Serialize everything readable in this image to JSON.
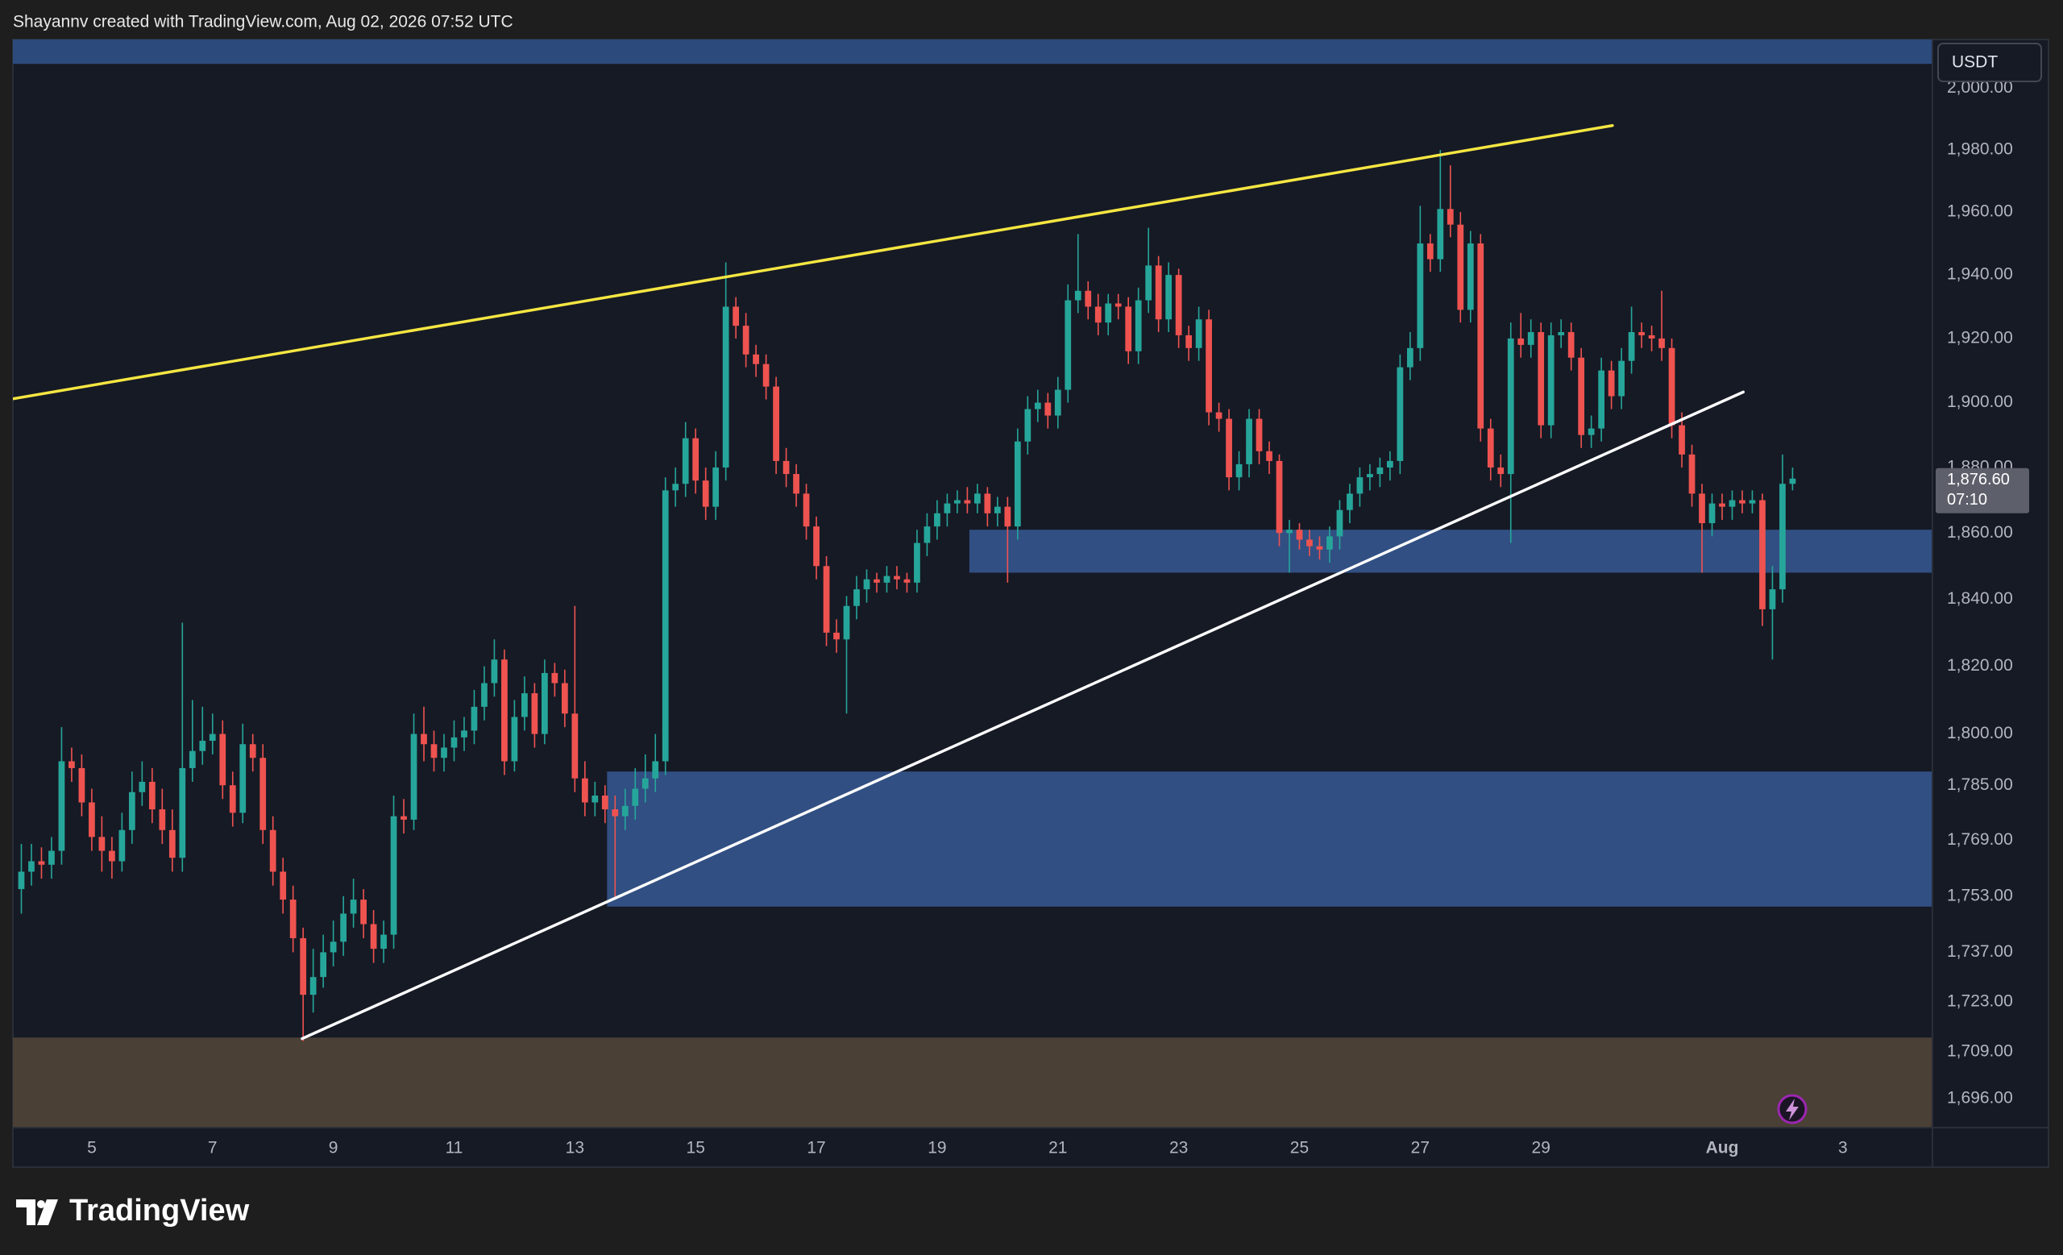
{
  "header": "Shayannv created with TradingView.com, Aug 02, 2026 07:52 UTC",
  "brand": "TradingView",
  "chart_data": {
    "type": "candlestick",
    "currency": "USDT",
    "log_scale": true,
    "grid": false,
    "up_color": "#26a69a",
    "down_color": "#ef5350",
    "xlim": [
      -0.84,
      189.9
    ],
    "xticks": [
      {
        "value": 7,
        "label": "5"
      },
      {
        "value": 19,
        "label": "7"
      },
      {
        "value": 31,
        "label": "9"
      },
      {
        "value": 43,
        "label": "11"
      },
      {
        "value": 55,
        "label": "13"
      },
      {
        "value": 67,
        "label": "15"
      },
      {
        "value": 79,
        "label": "17"
      },
      {
        "value": 91,
        "label": "19"
      },
      {
        "value": 103,
        "label": "21"
      },
      {
        "value": 115,
        "label": "23"
      },
      {
        "value": 127,
        "label": "25"
      },
      {
        "value": 139,
        "label": "27"
      },
      {
        "value": 151,
        "label": "29"
      },
      {
        "value": 169,
        "label": "Aug"
      },
      {
        "value": 181,
        "label": "3"
      }
    ],
    "ylim": [
      1688,
      2016
    ],
    "yticks": [
      {
        "value": 2000,
        "label": "2,000.00"
      },
      {
        "value": 1980,
        "label": "1,980.00"
      },
      {
        "value": 1960,
        "label": "1,960.00"
      },
      {
        "value": 1940,
        "label": "1,940.00"
      },
      {
        "value": 1920,
        "label": "1,920.00"
      },
      {
        "value": 1900,
        "label": "1,900.00"
      },
      {
        "value": 1880,
        "label": "1,880.00"
      },
      {
        "value": 1860,
        "label": "1,860.00"
      },
      {
        "value": 1840,
        "label": "1,840.00"
      },
      {
        "value": 1820,
        "label": "1,820.00"
      },
      {
        "value": 1800,
        "label": "1,800.00"
      },
      {
        "value": 1785,
        "label": "1,785.00"
      },
      {
        "value": 1769,
        "label": "1,769.00"
      },
      {
        "value": 1753,
        "label": "1,753.00"
      },
      {
        "value": 1737,
        "label": "1,737.00"
      },
      {
        "value": 1723,
        "label": "1,723.00"
      },
      {
        "value": 1709,
        "label": "1,709.00"
      },
      {
        "value": 1696,
        "label": "1,696.00"
      }
    ],
    "last_price": {
      "value": 1876.6,
      "label": "1,876.60"
    },
    "countdown": "07:10",
    "series": [
      {
        "open": [
          1755,
          1760,
          1763,
          1762,
          1766,
          1792,
          1790,
          1780,
          1770,
          1766,
          1763,
          1772,
          1783,
          1786,
          1778,
          1772,
          1764,
          1790,
          1795,
          1798,
          1800,
          1785,
          1777,
          1797,
          1793,
          1772,
          1760,
          1752,
          1741,
          1725,
          1730,
          1737,
          1740,
          1748,
          1752,
          1745,
          1738,
          1742,
          1776,
          1775,
          1800,
          1797,
          1793,
          1796,
          1799,
          1801,
          1808,
          1815,
          1822,
          1792,
          1805,
          1812,
          1800,
          1818,
          1815,
          1806,
          1787,
          1780,
          1782,
          1778,
          1776,
          1779,
          1784,
          1787,
          1792,
          1873,
          1875,
          1889,
          1876,
          1868,
          1880,
          1930,
          1924,
          1915,
          1912,
          1905,
          1882,
          1878,
          1872,
          1862,
          1850,
          1830,
          1828,
          1838,
          1843,
          1846,
          1845,
          1847,
          1846,
          1845,
          1857,
          1862,
          1866,
          1869,
          1870,
          1869,
          1872,
          1866,
          1868,
          1862,
          1888,
          1898,
          1900,
          1896,
          1904,
          1932,
          1935,
          1930,
          1925,
          1931,
          1930,
          1916,
          1932,
          1943,
          1926,
          1940,
          1921,
          1917,
          1926,
          1897,
          1895,
          1877,
          1881,
          1895,
          1885,
          1882,
          1860,
          1861,
          1858,
          1856,
          1855,
          1859,
          1867,
          1872,
          1877,
          1878,
          1880,
          1882,
          1911,
          1917,
          1950,
          1945,
          1961,
          1956,
          1929,
          1950,
          1892,
          1880,
          1878,
          1920,
          1918,
          1922,
          1893,
          1921,
          1922,
          1914,
          1890,
          1892,
          1910,
          1902,
          1913,
          1922,
          1921,
          1920,
          1917,
          1893,
          1884,
          1872,
          1863,
          1869,
          1868,
          1870,
          1869,
          1870,
          1837,
          1843,
          1875
        ],
        "high": [
          1768,
          1768,
          1767,
          1770,
          1802,
          1796,
          1794,
          1784,
          1776,
          1770,
          1777,
          1789,
          1792,
          1790,
          1784,
          1778,
          1833,
          1810,
          1808,
          1806,
          1804,
          1789,
          1803,
          1800,
          1797,
          1776,
          1764,
          1756,
          1744,
          1738,
          1742,
          1746,
          1753,
          1758,
          1755,
          1749,
          1746,
          1782,
          1781,
          1806,
          1808,
          1801,
          1800,
          1804,
          1805,
          1813,
          1820,
          1828,
          1825,
          1810,
          1817,
          1815,
          1822,
          1821,
          1819,
          1838,
          1792,
          1786,
          1785,
          1782,
          1784,
          1790,
          1794,
          1800,
          1877,
          1880,
          1894,
          1892,
          1880,
          1885,
          1944,
          1933,
          1928,
          1918,
          1915,
          1908,
          1886,
          1881,
          1875,
          1865,
          1853,
          1834,
          1841,
          1847,
          1849,
          1848,
          1850,
          1850,
          1848,
          1861,
          1866,
          1870,
          1872,
          1873,
          1874,
          1875,
          1874,
          1871,
          1871,
          1892,
          1902,
          1904,
          1903,
          1908,
          1937,
          1953,
          1938,
          1934,
          1934,
          1934,
          1933,
          1936,
          1955,
          1946,
          1944,
          1942,
          1924,
          1930,
          1929,
          1900,
          1898,
          1885,
          1898,
          1898,
          1888,
          1884,
          1864,
          1863,
          1861,
          1859,
          1862,
          1870,
          1875,
          1880,
          1881,
          1883,
          1885,
          1915,
          1922,
          1962,
          1953,
          1980,
          1975,
          1960,
          1954,
          1953,
          1895,
          1884,
          1925,
          1928,
          1926,
          1925,
          1925,
          1926,
          1925,
          1917,
          1896,
          1914,
          1913,
          1917,
          1930,
          1925,
          1924,
          1935,
          1920,
          1897,
          1887,
          1875,
          1872,
          1872,
          1873,
          1873,
          1873,
          1872,
          1850,
          1884,
          1880
        ],
        "low": [
          1748,
          1756,
          1758,
          1758,
          1762,
          1786,
          1776,
          1766,
          1760,
          1758,
          1760,
          1768,
          1779,
          1774,
          1768,
          1760,
          1760,
          1786,
          1791,
          1794,
          1781,
          1773,
          1774,
          1789,
          1768,
          1756,
          1748,
          1737,
          1712,
          1720,
          1727,
          1733,
          1736,
          1744,
          1741,
          1734,
          1734,
          1738,
          1771,
          1772,
          1792,
          1789,
          1789,
          1792,
          1795,
          1797,
          1804,
          1811,
          1788,
          1789,
          1801,
          1796,
          1797,
          1811,
          1802,
          1783,
          1776,
          1776,
          1774,
          1752,
          1772,
          1775,
          1780,
          1783,
          1788,
          1868,
          1871,
          1872,
          1864,
          1864,
          1876,
          1920,
          1911,
          1908,
          1901,
          1878,
          1874,
          1868,
          1858,
          1846,
          1826,
          1824,
          1806,
          1834,
          1839,
          1842,
          1842,
          1843,
          1842,
          1842,
          1853,
          1858,
          1862,
          1866,
          1866,
          1866,
          1862,
          1862,
          1845,
          1858,
          1884,
          1894,
          1892,
          1892,
          1900,
          1928,
          1926,
          1921,
          1921,
          1926,
          1912,
          1912,
          1928,
          1922,
          1922,
          1917,
          1913,
          1913,
          1893,
          1891,
          1873,
          1873,
          1877,
          1881,
          1878,
          1856,
          1848,
          1855,
          1853,
          1852,
          1851,
          1855,
          1863,
          1868,
          1873,
          1874,
          1876,
          1878,
          1907,
          1913,
          1941,
          1941,
          1952,
          1925,
          1925,
          1888,
          1876,
          1874,
          1857,
          1914,
          1914,
          1889,
          1889,
          1917,
          1910,
          1886,
          1886,
          1888,
          1898,
          1898,
          1909,
          1917,
          1916,
          1913,
          1889,
          1880,
          1868,
          1848,
          1859,
          1864,
          1864,
          1866,
          1866,
          1832,
          1822,
          1839,
          1873
        ],
        "close": [
          1760,
          1763,
          1762,
          1766,
          1792,
          1790,
          1780,
          1770,
          1766,
          1763,
          1772,
          1783,
          1786,
          1778,
          1772,
          1764,
          1790,
          1795,
          1798,
          1800,
          1785,
          1777,
          1797,
          1793,
          1772,
          1760,
          1752,
          1741,
          1725,
          1730,
          1737,
          1740,
          1748,
          1752,
          1745,
          1738,
          1742,
          1776,
          1775,
          1800,
          1797,
          1793,
          1796,
          1799,
          1801,
          1808,
          1815,
          1822,
          1792,
          1805,
          1812,
          1800,
          1818,
          1815,
          1806,
          1787,
          1780,
          1782,
          1778,
          1776,
          1779,
          1784,
          1787,
          1792,
          1873,
          1875,
          1889,
          1876,
          1868,
          1880,
          1930,
          1924,
          1915,
          1912,
          1905,
          1882,
          1878,
          1872,
          1862,
          1850,
          1830,
          1828,
          1838,
          1843,
          1846,
          1845,
          1847,
          1846,
          1845,
          1857,
          1862,
          1866,
          1869,
          1870,
          1869,
          1872,
          1866,
          1868,
          1862,
          1888,
          1898,
          1900,
          1896,
          1904,
          1932,
          1935,
          1930,
          1925,
          1931,
          1930,
          1916,
          1932,
          1943,
          1926,
          1940,
          1921,
          1917,
          1926,
          1897,
          1895,
          1877,
          1881,
          1895,
          1885,
          1882,
          1860,
          1861,
          1858,
          1856,
          1855,
          1859,
          1867,
          1872,
          1877,
          1878,
          1880,
          1882,
          1911,
          1917,
          1950,
          1945,
          1961,
          1956,
          1929,
          1950,
          1892,
          1880,
          1878,
          1920,
          1918,
          1922,
          1893,
          1921,
          1922,
          1914,
          1890,
          1892,
          1910,
          1902,
          1913,
          1922,
          1921,
          1920,
          1917,
          1893,
          1884,
          1872,
          1863,
          1869,
          1868,
          1870,
          1869,
          1870,
          1837,
          1843,
          1875,
          1876.6
        ]
      }
    ],
    "zones": [
      {
        "low": 2008,
        "high": 2016,
        "color": "#2c4a7c"
      },
      {
        "low": 1848,
        "high": 1861,
        "from": 94.2,
        "color": "#314f82"
      },
      {
        "low": 1750,
        "high": 1789,
        "from": 58.2,
        "color": "#314f82"
      },
      {
        "low": 1688,
        "high": 1713,
        "color": "#4a4036"
      }
    ],
    "trendlines": [
      {
        "x": [
          -0.84,
          158.1
        ],
        "y": [
          1901.2,
          1987.9
        ],
        "color": "#f5e642"
      },
      {
        "x": [
          27.9,
          171.1
        ],
        "y": [
          1712.7,
          1903.3
        ],
        "color": "#ffffff"
      }
    ]
  }
}
